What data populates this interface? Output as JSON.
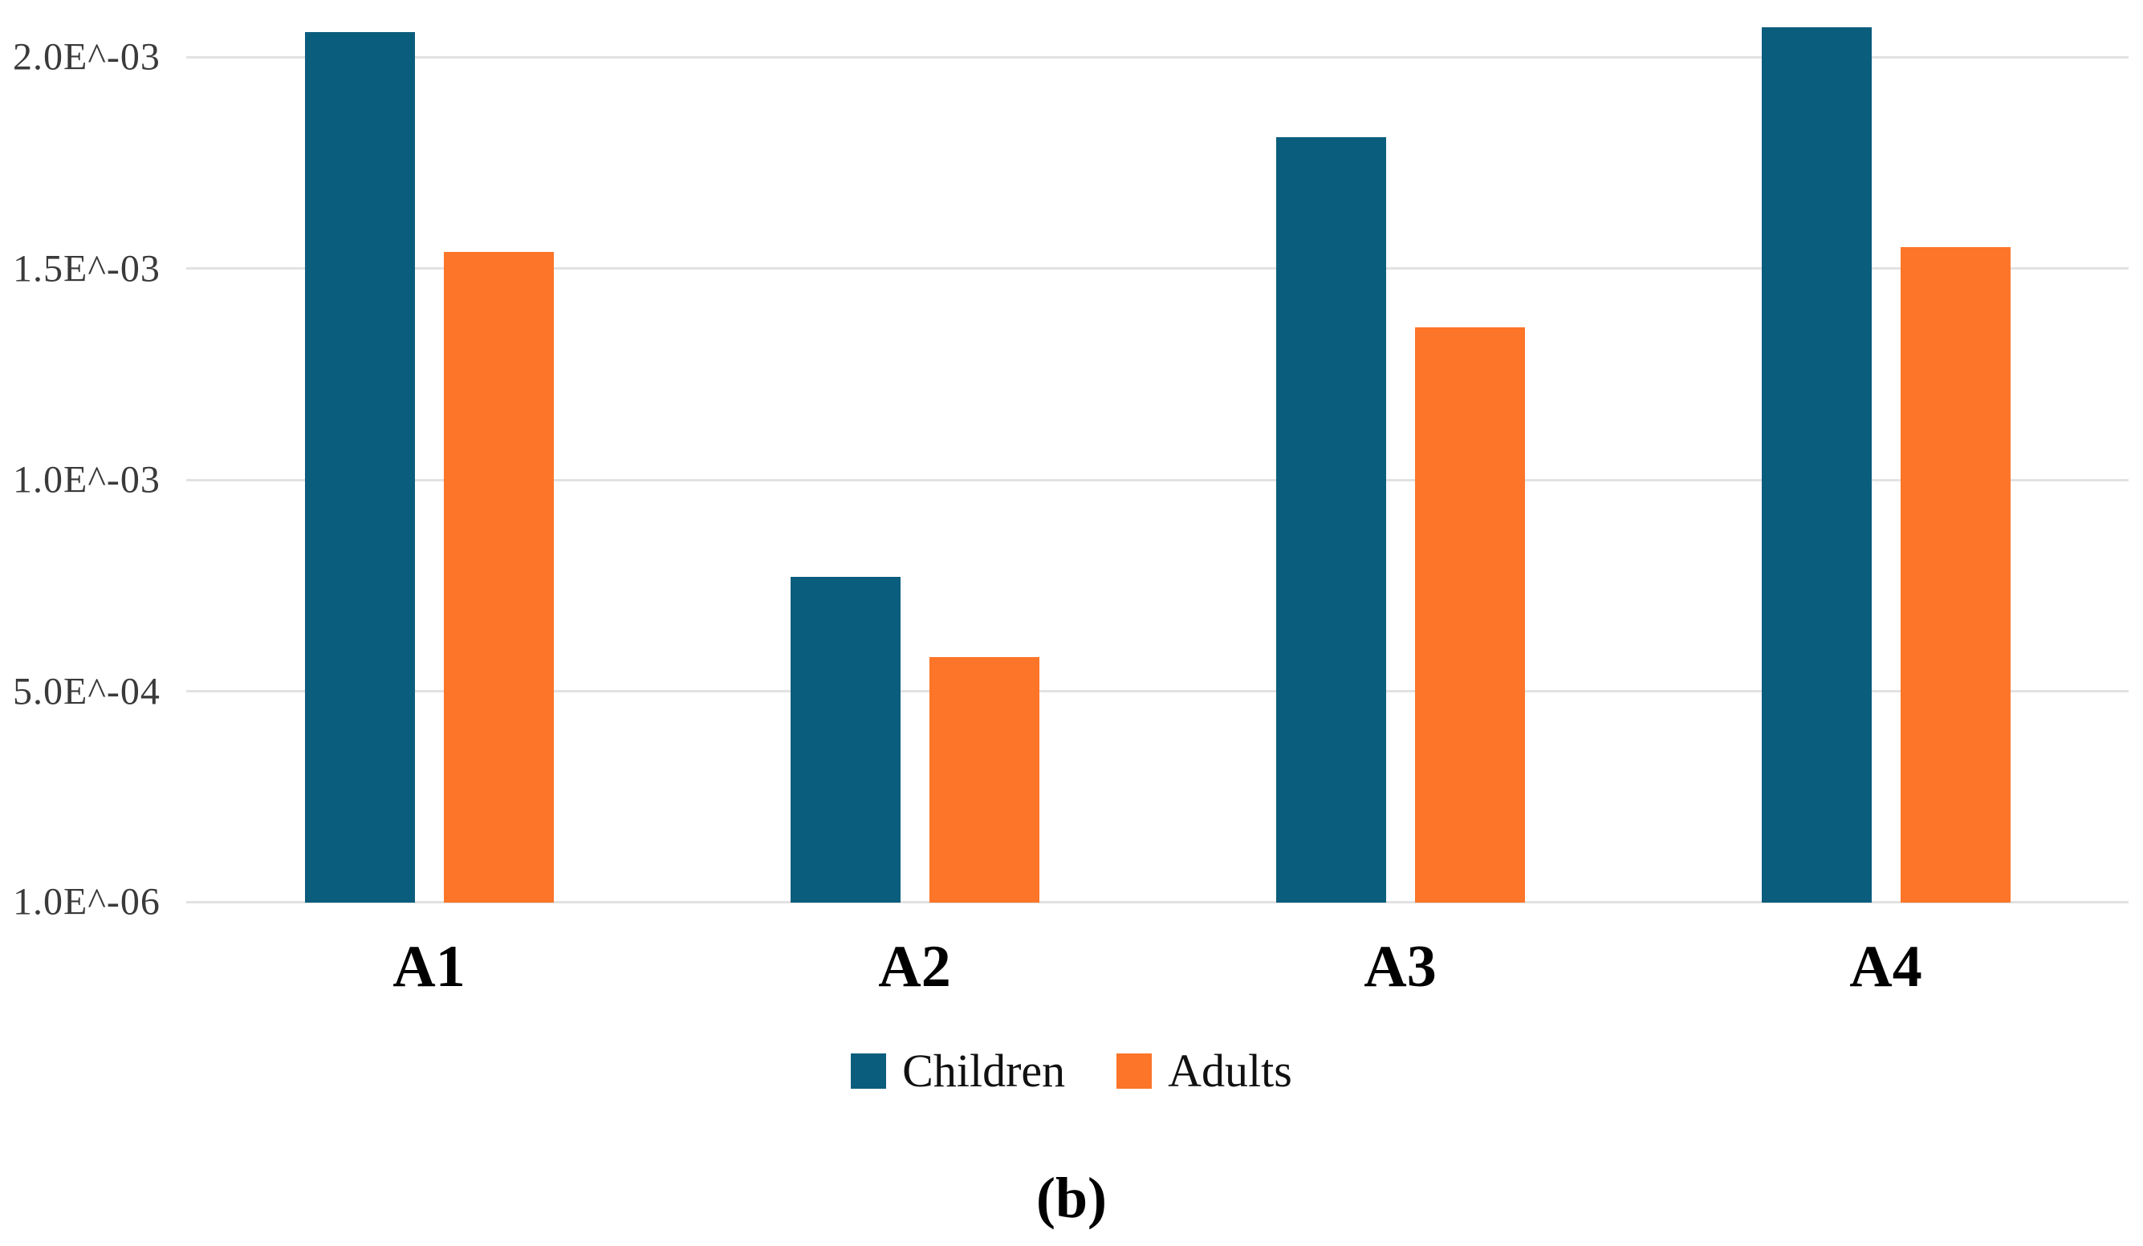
{
  "figure": {
    "caption": "(b)"
  },
  "chart_data": {
    "type": "bar",
    "title": "",
    "xlabel": "",
    "ylabel": "",
    "categories": [
      "A1",
      "A2",
      "A3",
      "A4"
    ],
    "series": [
      {
        "name": "Children",
        "color": "#0B5D7D",
        "values": [
          0.00206,
          0.00077,
          0.00181,
          0.00207
        ]
      },
      {
        "name": "Adults",
        "color": "#FC7528",
        "values": [
          0.00154,
          0.00058,
          0.00136,
          0.00155
        ]
      }
    ],
    "y_ticks": [
      {
        "label": "2.0E^-03",
        "value": 0.002
      },
      {
        "label": "1.5E^-03",
        "value": 0.0015
      },
      {
        "label": "1.0E^-03",
        "value": 0.001
      },
      {
        "label": "5.0E^-04",
        "value": 0.0005
      },
      {
        "label": "1.0E^-06",
        "value": 1e-06
      }
    ],
    "ylim": [
      0,
      0.002135
    ],
    "grid": "horizontal",
    "gridline_color": "#E2E2E2",
    "legend_position": "bottom"
  }
}
